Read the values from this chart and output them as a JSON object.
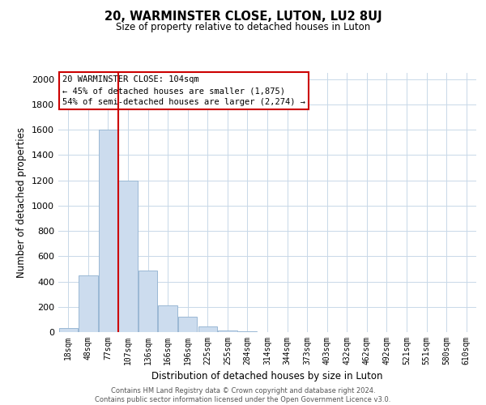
{
  "title": "20, WARMINSTER CLOSE, LUTON, LU2 8UJ",
  "subtitle": "Size of property relative to detached houses in Luton",
  "xlabel": "Distribution of detached houses by size in Luton",
  "ylabel": "Number of detached properties",
  "bar_labels": [
    "18sqm",
    "48sqm",
    "77sqm",
    "107sqm",
    "136sqm",
    "166sqm",
    "196sqm",
    "225sqm",
    "255sqm",
    "284sqm",
    "314sqm",
    "344sqm",
    "373sqm",
    "403sqm",
    "432sqm",
    "462sqm",
    "492sqm",
    "521sqm",
    "551sqm",
    "580sqm",
    "610sqm"
  ],
  "bar_values": [
    35,
    450,
    1600,
    1200,
    490,
    210,
    120,
    45,
    15,
    5,
    0,
    0,
    0,
    0,
    0,
    0,
    0,
    0,
    0,
    0,
    0
  ],
  "bar_color": "#ccdcee",
  "bar_edge_color": "#9ab8d4",
  "vline_x": 2.5,
  "vline_color": "#cc0000",
  "ylim": [
    0,
    2050
  ],
  "yticks": [
    0,
    200,
    400,
    600,
    800,
    1000,
    1200,
    1400,
    1600,
    1800,
    2000
  ],
  "annotation_line1": "20 WARMINSTER CLOSE: 104sqm",
  "annotation_line2": "← 45% of detached houses are smaller (1,875)",
  "annotation_line3": "54% of semi-detached houses are larger (2,274) →",
  "annotation_box_color": "#ffffff",
  "annotation_box_edge": "#cc0000",
  "footer_text": "Contains HM Land Registry data © Crown copyright and database right 2024.\nContains public sector information licensed under the Open Government Licence v3.0.",
  "background_color": "#ffffff",
  "grid_color": "#c8d8e8"
}
